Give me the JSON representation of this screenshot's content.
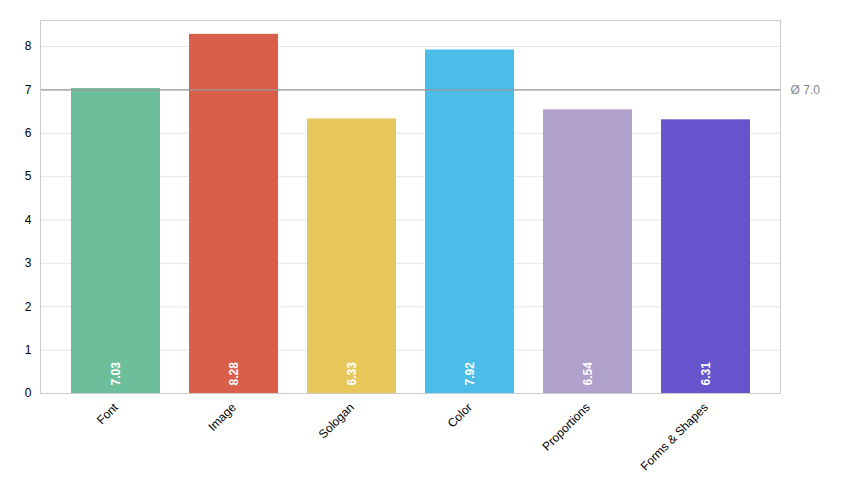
{
  "chart_data": {
    "type": "bar",
    "categories": [
      "Font",
      "Image",
      "Sologan",
      "Color",
      "Proportions",
      "Forms & Shapes"
    ],
    "values": [
      7.03,
      8.28,
      6.33,
      7.92,
      6.54,
      6.31
    ],
    "colors": [
      "#6dbf9c",
      "#d95f4b",
      "#e8c75a",
      "#4bbde8",
      "#b0a0cc",
      "#6655cc"
    ],
    "ylim": [
      0,
      8.6
    ],
    "yticks": [
      0,
      1,
      2,
      3,
      4,
      5,
      6,
      7,
      8
    ],
    "grid": true,
    "data_labels": true,
    "annotations": [
      {
        "type": "hline",
        "y": 7.0,
        "text": "Ø 7.0"
      }
    ]
  }
}
